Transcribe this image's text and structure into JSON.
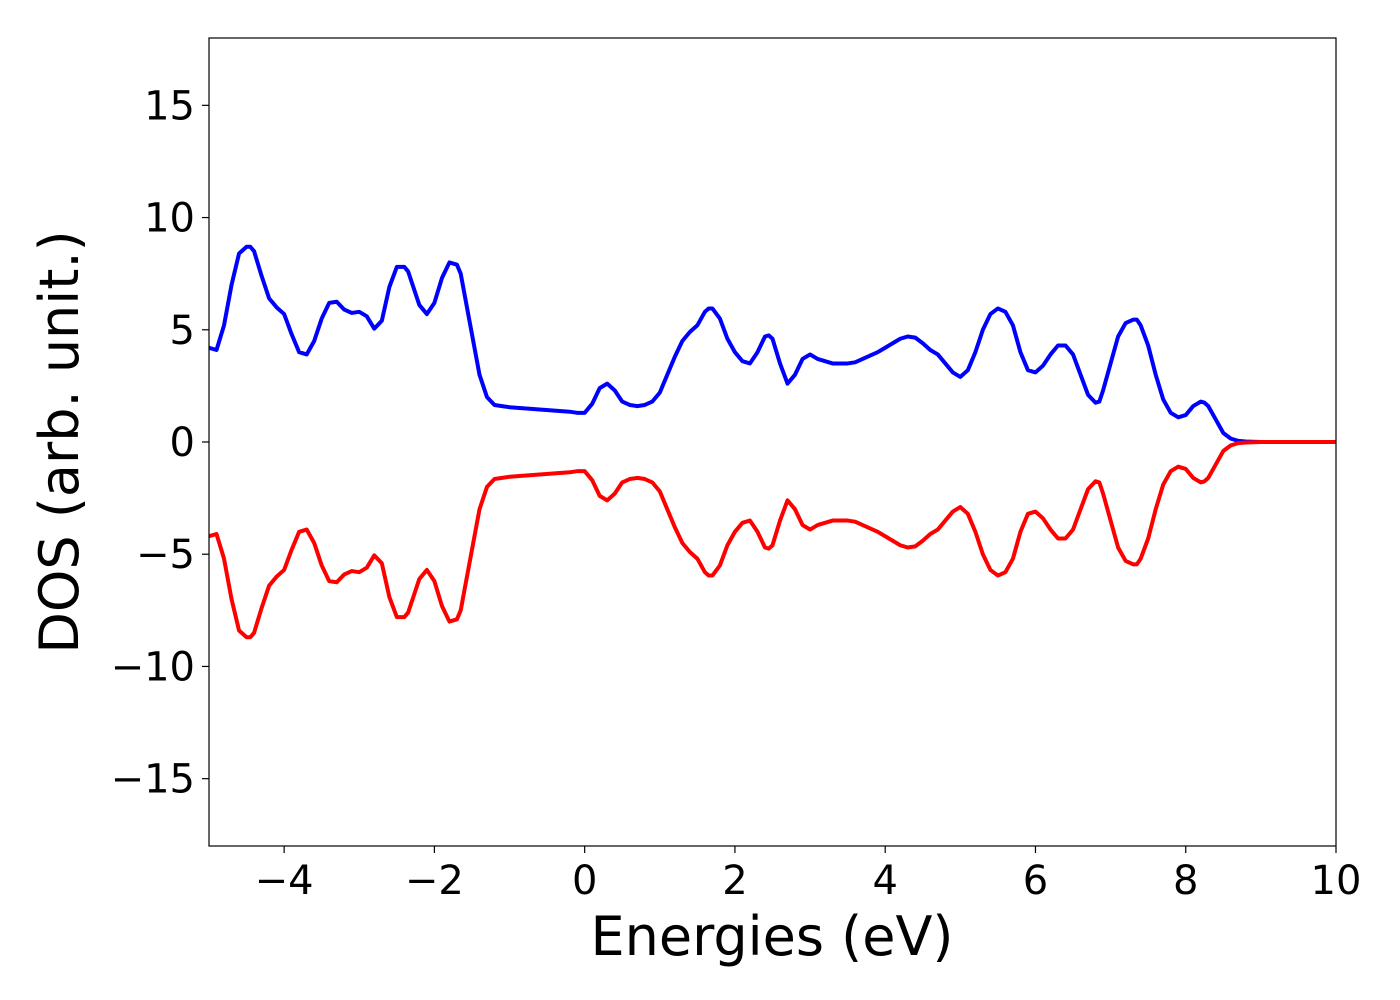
{
  "chart_data": {
    "type": "line",
    "title": "",
    "xlabel": "Energies (eV)",
    "ylabel": "DOS (arb. unit.)",
    "xlim": [
      -5,
      10
    ],
    "ylim": [
      -18,
      18
    ],
    "xticks": [
      -4,
      -2,
      0,
      2,
      4,
      6,
      8,
      10
    ],
    "yticks": [
      -15,
      -10,
      -5,
      0,
      5,
      10,
      15
    ],
    "xtick_labels": [
      "−4",
      "−2",
      "0",
      "2",
      "4",
      "6",
      "8",
      "10"
    ],
    "ytick_labels": [
      "−15",
      "−10",
      "−5",
      "0",
      "5",
      "10",
      "15"
    ],
    "grid": false,
    "legend": "none",
    "series": [
      {
        "color": "#0000ff",
        "x": [
          -5.0,
          -4.9,
          -4.8,
          -4.7,
          -4.6,
          -4.5,
          -4.45,
          -4.4,
          -4.3,
          -4.2,
          -4.1,
          -4.0,
          -3.9,
          -3.8,
          -3.7,
          -3.6,
          -3.5,
          -3.4,
          -3.3,
          -3.2,
          -3.1,
          -3.0,
          -2.9,
          -2.8,
          -2.7,
          -2.6,
          -2.5,
          -2.4,
          -2.35,
          -2.3,
          -2.2,
          -2.1,
          -2.0,
          -1.9,
          -1.8,
          -1.7,
          -1.65,
          -1.6,
          -1.5,
          -1.4,
          -1.3,
          -1.2,
          -1.1,
          -1.0,
          -0.8,
          -0.6,
          -0.4,
          -0.2,
          -0.1,
          0.0,
          0.1,
          0.2,
          0.3,
          0.4,
          0.5,
          0.6,
          0.7,
          0.8,
          0.9,
          1.0,
          1.1,
          1.2,
          1.3,
          1.4,
          1.5,
          1.6,
          1.65,
          1.7,
          1.8,
          1.9,
          2.0,
          2.1,
          2.2,
          2.3,
          2.4,
          2.45,
          2.5,
          2.6,
          2.7,
          2.8,
          2.9,
          3.0,
          3.1,
          3.2,
          3.3,
          3.4,
          3.5,
          3.6,
          3.7,
          3.8,
          3.9,
          4.0,
          4.1,
          4.2,
          4.3,
          4.4,
          4.5,
          4.6,
          4.7,
          4.8,
          4.9,
          5.0,
          5.1,
          5.2,
          5.3,
          5.4,
          5.5,
          5.6,
          5.7,
          5.8,
          5.9,
          6.0,
          6.1,
          6.2,
          6.3,
          6.4,
          6.5,
          6.6,
          6.7,
          6.8,
          6.85,
          6.9,
          7.0,
          7.1,
          7.2,
          7.3,
          7.35,
          7.4,
          7.5,
          7.6,
          7.7,
          7.8,
          7.9,
          8.0,
          8.1,
          8.2,
          8.25,
          8.3,
          8.4,
          8.5,
          8.6,
          8.7,
          8.8,
          9.0,
          9.5,
          10.0
        ],
        "y": [
          4.2,
          4.1,
          5.2,
          7.0,
          8.4,
          8.7,
          8.7,
          8.5,
          7.4,
          6.4,
          6.0,
          5.7,
          4.8,
          4.0,
          3.9,
          4.5,
          5.5,
          6.2,
          6.25,
          5.9,
          5.75,
          5.8,
          5.6,
          5.05,
          5.4,
          6.9,
          7.8,
          7.8,
          7.6,
          7.1,
          6.1,
          5.7,
          6.2,
          7.3,
          8.0,
          7.9,
          7.5,
          6.6,
          4.8,
          3.0,
          2.0,
          1.65,
          1.6,
          1.55,
          1.5,
          1.45,
          1.4,
          1.35,
          1.3,
          1.3,
          1.7,
          2.4,
          2.6,
          2.3,
          1.8,
          1.65,
          1.6,
          1.65,
          1.8,
          2.2,
          3.0,
          3.8,
          4.5,
          4.9,
          5.2,
          5.8,
          5.95,
          5.95,
          5.5,
          4.6,
          4.0,
          3.6,
          3.5,
          4.0,
          4.7,
          4.75,
          4.6,
          3.5,
          2.6,
          3.0,
          3.7,
          3.9,
          3.7,
          3.6,
          3.5,
          3.5,
          3.5,
          3.55,
          3.7,
          3.85,
          4.0,
          4.2,
          4.4,
          4.6,
          4.7,
          4.65,
          4.4,
          4.1,
          3.9,
          3.5,
          3.1,
          2.9,
          3.2,
          4.0,
          5.0,
          5.7,
          5.95,
          5.8,
          5.2,
          4.0,
          3.2,
          3.1,
          3.4,
          3.9,
          4.3,
          4.3,
          3.9,
          3.0,
          2.1,
          1.75,
          1.8,
          2.3,
          3.5,
          4.7,
          5.3,
          5.45,
          5.45,
          5.2,
          4.3,
          3.0,
          1.9,
          1.3,
          1.1,
          1.2,
          1.6,
          1.8,
          1.75,
          1.6,
          1.0,
          0.4,
          0.15,
          0.05,
          0.02,
          0.0,
          0.0,
          0.0
        ]
      },
      {
        "color": "#ff0000",
        "x": [
          -5.0,
          -4.9,
          -4.8,
          -4.7,
          -4.6,
          -4.5,
          -4.45,
          -4.4,
          -4.3,
          -4.2,
          -4.1,
          -4.0,
          -3.9,
          -3.8,
          -3.7,
          -3.6,
          -3.5,
          -3.4,
          -3.3,
          -3.2,
          -3.1,
          -3.0,
          -2.9,
          -2.8,
          -2.7,
          -2.6,
          -2.5,
          -2.4,
          -2.35,
          -2.3,
          -2.2,
          -2.1,
          -2.0,
          -1.9,
          -1.8,
          -1.7,
          -1.65,
          -1.6,
          -1.5,
          -1.4,
          -1.3,
          -1.2,
          -1.1,
          -1.0,
          -0.8,
          -0.6,
          -0.4,
          -0.2,
          -0.1,
          0.0,
          0.1,
          0.2,
          0.3,
          0.4,
          0.5,
          0.6,
          0.7,
          0.8,
          0.9,
          1.0,
          1.1,
          1.2,
          1.3,
          1.4,
          1.5,
          1.6,
          1.65,
          1.7,
          1.8,
          1.9,
          2.0,
          2.1,
          2.2,
          2.3,
          2.4,
          2.45,
          2.5,
          2.6,
          2.7,
          2.8,
          2.9,
          3.0,
          3.1,
          3.2,
          3.3,
          3.4,
          3.5,
          3.6,
          3.7,
          3.8,
          3.9,
          4.0,
          4.1,
          4.2,
          4.3,
          4.4,
          4.5,
          4.6,
          4.7,
          4.8,
          4.9,
          5.0,
          5.1,
          5.2,
          5.3,
          5.4,
          5.5,
          5.6,
          5.7,
          5.8,
          5.9,
          6.0,
          6.1,
          6.2,
          6.3,
          6.4,
          6.5,
          6.6,
          6.7,
          6.8,
          6.85,
          6.9,
          7.0,
          7.1,
          7.2,
          7.3,
          7.35,
          7.4,
          7.5,
          7.6,
          7.7,
          7.8,
          7.9,
          8.0,
          8.1,
          8.2,
          8.25,
          8.3,
          8.4,
          8.5,
          8.6,
          8.7,
          8.8,
          9.0,
          9.5,
          10.0
        ],
        "y": [
          -4.2,
          -4.1,
          -5.2,
          -7.0,
          -8.4,
          -8.7,
          -8.7,
          -8.5,
          -7.4,
          -6.4,
          -6.0,
          -5.7,
          -4.8,
          -4.0,
          -3.9,
          -4.5,
          -5.5,
          -6.2,
          -6.25,
          -5.9,
          -5.75,
          -5.8,
          -5.6,
          -5.05,
          -5.4,
          -6.9,
          -7.8,
          -7.8,
          -7.6,
          -7.1,
          -6.1,
          -5.7,
          -6.2,
          -7.3,
          -8.0,
          -7.9,
          -7.5,
          -6.6,
          -4.8,
          -3.0,
          -2.0,
          -1.65,
          -1.6,
          -1.55,
          -1.5,
          -1.45,
          -1.4,
          -1.35,
          -1.3,
          -1.3,
          -1.7,
          -2.4,
          -2.6,
          -2.3,
          -1.8,
          -1.65,
          -1.6,
          -1.65,
          -1.8,
          -2.2,
          -3.0,
          -3.8,
          -4.5,
          -4.9,
          -5.2,
          -5.8,
          -5.95,
          -5.95,
          -5.5,
          -4.6,
          -4.0,
          -3.6,
          -3.5,
          -4.0,
          -4.7,
          -4.75,
          -4.6,
          -3.5,
          -2.6,
          -3.0,
          -3.7,
          -3.9,
          -3.7,
          -3.6,
          -3.5,
          -3.5,
          -3.5,
          -3.55,
          -3.7,
          -3.85,
          -4.0,
          -4.2,
          -4.4,
          -4.6,
          -4.7,
          -4.65,
          -4.4,
          -4.1,
          -3.9,
          -3.5,
          -3.1,
          -2.9,
          -3.2,
          -4.0,
          -5.0,
          -5.7,
          -5.95,
          -5.8,
          -5.2,
          -4.0,
          -3.2,
          -3.1,
          -3.4,
          -3.9,
          -4.3,
          -4.3,
          -3.9,
          -3.0,
          -2.1,
          -1.75,
          -1.8,
          -2.3,
          -3.5,
          -4.7,
          -5.3,
          -5.45,
          -5.45,
          -5.2,
          -4.3,
          -3.0,
          -1.9,
          -1.3,
          -1.1,
          -1.2,
          -1.6,
          -1.8,
          -1.75,
          -1.6,
          -1.0,
          -0.4,
          -0.15,
          -0.05,
          -0.02,
          0.0,
          0.0,
          0.0
        ]
      }
    ]
  }
}
